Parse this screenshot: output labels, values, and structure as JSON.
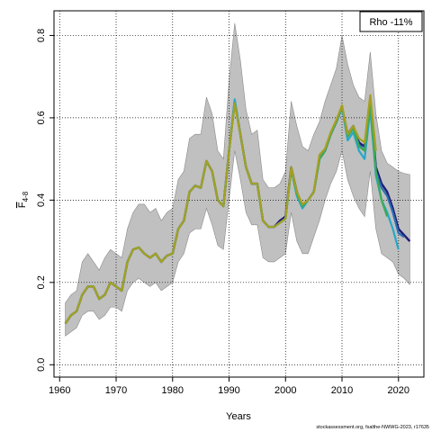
{
  "chart_data": {
    "type": "line",
    "xlabel": "Years",
    "ylabel_main": "F",
    "ylabel_sub": "4-8",
    "xlim": [
      1959,
      2024.5
    ],
    "ylim": [
      -0.03,
      0.86
    ],
    "x_ticks": [
      1960,
      1970,
      1980,
      1990,
      2000,
      2010,
      2020
    ],
    "y_ticks": [
      "0.0",
      "0.2",
      "0.4",
      "0.6",
      "0.8"
    ],
    "y_tick_values": [
      0.0,
      0.2,
      0.4,
      0.6,
      0.8
    ],
    "grid": true,
    "legend_position": "top-right",
    "legend_text": "Rho -11%",
    "band": {
      "x": [
        1961,
        1962,
        1963,
        1964,
        1965,
        1966,
        1967,
        1968,
        1969,
        1970,
        1971,
        1972,
        1973,
        1974,
        1975,
        1976,
        1977,
        1978,
        1979,
        1980,
        1981,
        1982,
        1983,
        1984,
        1985,
        1986,
        1987,
        1988,
        1989,
        1990,
        1991,
        1992,
        1993,
        1994,
        1995,
        1996,
        1997,
        1998,
        1999,
        2000,
        2001,
        2002,
        2003,
        2004,
        2005,
        2006,
        2007,
        2008,
        2009,
        2010,
        2011,
        2012,
        2013,
        2014,
        2015,
        2016,
        2017,
        2018,
        2019,
        2020,
        2021,
        2022
      ],
      "upper": [
        0.15,
        0.17,
        0.18,
        0.25,
        0.27,
        0.25,
        0.23,
        0.26,
        0.28,
        0.27,
        0.26,
        0.33,
        0.37,
        0.39,
        0.39,
        0.37,
        0.38,
        0.35,
        0.37,
        0.38,
        0.45,
        0.47,
        0.55,
        0.56,
        0.56,
        0.65,
        0.61,
        0.52,
        0.5,
        0.69,
        0.83,
        0.74,
        0.62,
        0.56,
        0.57,
        0.45,
        0.43,
        0.43,
        0.44,
        0.47,
        0.64,
        0.58,
        0.53,
        0.52,
        0.56,
        0.59,
        0.64,
        0.68,
        0.72,
        0.8,
        0.73,
        0.68,
        0.65,
        0.64,
        0.76,
        0.61,
        0.52,
        0.49,
        0.48,
        0.47,
        0.465,
        0.462
      ],
      "lower": [
        0.07,
        0.08,
        0.09,
        0.12,
        0.13,
        0.13,
        0.11,
        0.12,
        0.14,
        0.14,
        0.13,
        0.18,
        0.2,
        0.21,
        0.2,
        0.19,
        0.2,
        0.18,
        0.19,
        0.2,
        0.25,
        0.27,
        0.32,
        0.33,
        0.33,
        0.38,
        0.34,
        0.29,
        0.28,
        0.4,
        0.52,
        0.45,
        0.37,
        0.34,
        0.34,
        0.26,
        0.25,
        0.25,
        0.26,
        0.27,
        0.37,
        0.3,
        0.27,
        0.27,
        0.31,
        0.35,
        0.4,
        0.44,
        0.47,
        0.52,
        0.45,
        0.41,
        0.38,
        0.36,
        0.47,
        0.33,
        0.27,
        0.26,
        0.25,
        0.22,
        0.21,
        0.195
      ]
    },
    "series": [
      {
        "color": "#1e1b78",
        "x": [
          1961,
          1962,
          1963,
          1964,
          1965,
          1966,
          1967,
          1968,
          1969,
          1970,
          1971,
          1972,
          1973,
          1974,
          1975,
          1976,
          1977,
          1978,
          1979,
          1980,
          1981,
          1982,
          1983,
          1984,
          1985,
          1986,
          1987,
          1988,
          1989,
          1990,
          1991,
          1992,
          1993,
          1994,
          1995,
          1996,
          1997,
          1998,
          1999,
          2000,
          2001,
          2002,
          2003,
          2004,
          2005,
          2006,
          2007,
          2008,
          2009,
          2010,
          2011,
          2012,
          2013,
          2014,
          2015,
          2016,
          2017,
          2018,
          2019,
          2020,
          2021,
          2022
        ],
        "values": [
          0.1,
          0.12,
          0.13,
          0.17,
          0.19,
          0.19,
          0.16,
          0.17,
          0.2,
          0.19,
          0.18,
          0.25,
          0.28,
          0.285,
          0.27,
          0.26,
          0.27,
          0.25,
          0.265,
          0.27,
          0.33,
          0.35,
          0.42,
          0.435,
          0.43,
          0.495,
          0.47,
          0.4,
          0.385,
          0.52,
          0.64,
          0.56,
          0.48,
          0.44,
          0.44,
          0.35,
          0.335,
          0.335,
          0.35,
          0.36,
          0.48,
          0.42,
          0.385,
          0.4,
          0.42,
          0.5,
          0.52,
          0.56,
          0.59,
          0.625,
          0.56,
          0.58,
          0.54,
          0.53,
          0.64,
          0.48,
          0.44,
          0.42,
          0.38,
          0.33,
          0.315,
          0.3
        ]
      },
      {
        "color": "#2b6fb0",
        "x": [
          1961,
          1962,
          1963,
          1964,
          1965,
          1966,
          1967,
          1968,
          1969,
          1970,
          1971,
          1972,
          1973,
          1974,
          1975,
          1976,
          1977,
          1978,
          1979,
          1980,
          1981,
          1982,
          1983,
          1984,
          1985,
          1986,
          1987,
          1988,
          1989,
          1990,
          1991,
          1992,
          1993,
          1994,
          1995,
          1996,
          1997,
          1998,
          1999,
          2000,
          2001,
          2002,
          2003,
          2004,
          2005,
          2006,
          2007,
          2008,
          2009,
          2010,
          2011,
          2012,
          2013,
          2014,
          2015,
          2016,
          2017,
          2018,
          2019,
          2020,
          2021
        ],
        "values": [
          0.1,
          0.12,
          0.13,
          0.17,
          0.19,
          0.19,
          0.16,
          0.17,
          0.2,
          0.19,
          0.18,
          0.25,
          0.28,
          0.285,
          0.27,
          0.26,
          0.27,
          0.25,
          0.265,
          0.27,
          0.33,
          0.35,
          0.42,
          0.435,
          0.43,
          0.495,
          0.47,
          0.4,
          0.385,
          0.52,
          0.64,
          0.56,
          0.48,
          0.44,
          0.44,
          0.35,
          0.335,
          0.335,
          0.345,
          0.355,
          0.475,
          0.415,
          0.385,
          0.4,
          0.42,
          0.5,
          0.52,
          0.56,
          0.59,
          0.625,
          0.555,
          0.575,
          0.535,
          0.52,
          0.63,
          0.47,
          0.43,
          0.41,
          0.37,
          0.32,
          0.31
        ]
      },
      {
        "color": "#25a8c8",
        "x": [
          1961,
          1962,
          1963,
          1964,
          1965,
          1966,
          1967,
          1968,
          1969,
          1970,
          1971,
          1972,
          1973,
          1974,
          1975,
          1976,
          1977,
          1978,
          1979,
          1980,
          1981,
          1982,
          1983,
          1984,
          1985,
          1986,
          1987,
          1988,
          1989,
          1990,
          1991,
          1992,
          1993,
          1994,
          1995,
          1996,
          1997,
          1998,
          1999,
          2000,
          2001,
          2002,
          2003,
          2004,
          2005,
          2006,
          2007,
          2008,
          2009,
          2010,
          2011,
          2012,
          2013,
          2014,
          2015,
          2016,
          2017,
          2018,
          2019,
          2020
        ],
        "values": [
          0.1,
          0.12,
          0.13,
          0.17,
          0.19,
          0.19,
          0.16,
          0.17,
          0.2,
          0.19,
          0.18,
          0.25,
          0.28,
          0.285,
          0.27,
          0.26,
          0.27,
          0.25,
          0.265,
          0.27,
          0.33,
          0.35,
          0.42,
          0.435,
          0.43,
          0.495,
          0.47,
          0.4,
          0.385,
          0.52,
          0.645,
          0.56,
          0.48,
          0.44,
          0.44,
          0.35,
          0.335,
          0.335,
          0.345,
          0.355,
          0.475,
          0.41,
          0.38,
          0.4,
          0.42,
          0.5,
          0.52,
          0.56,
          0.59,
          0.625,
          0.545,
          0.565,
          0.52,
          0.5,
          0.62,
          0.46,
          0.4,
          0.37,
          0.33,
          0.28
        ]
      },
      {
        "color": "#3daa55",
        "x": [
          1961,
          1962,
          1963,
          1964,
          1965,
          1966,
          1967,
          1968,
          1969,
          1970,
          1971,
          1972,
          1973,
          1974,
          1975,
          1976,
          1977,
          1978,
          1979,
          1980,
          1981,
          1982,
          1983,
          1984,
          1985,
          1986,
          1987,
          1988,
          1989,
          1990,
          1991,
          1992,
          1993,
          1994,
          1995,
          1996,
          1997,
          1998,
          1999,
          2000,
          2001,
          2002,
          2003,
          2004,
          2005,
          2006,
          2007,
          2008,
          2009,
          2010,
          2011,
          2012,
          2013,
          2014,
          2015,
          2016,
          2017,
          2018
        ],
        "values": [
          0.1,
          0.12,
          0.13,
          0.17,
          0.19,
          0.19,
          0.16,
          0.17,
          0.2,
          0.19,
          0.18,
          0.25,
          0.28,
          0.285,
          0.27,
          0.26,
          0.27,
          0.25,
          0.265,
          0.27,
          0.33,
          0.35,
          0.42,
          0.435,
          0.43,
          0.495,
          0.47,
          0.4,
          0.385,
          0.52,
          0.635,
          0.56,
          0.48,
          0.44,
          0.44,
          0.35,
          0.335,
          0.335,
          0.345,
          0.355,
          0.475,
          0.415,
          0.385,
          0.4,
          0.42,
          0.5,
          0.52,
          0.56,
          0.59,
          0.63,
          0.555,
          0.575,
          0.53,
          0.52,
          0.635,
          0.47,
          0.4,
          0.36
        ]
      },
      {
        "color": "#a6a020",
        "x": [
          1961,
          1962,
          1963,
          1964,
          1965,
          1966,
          1967,
          1968,
          1969,
          1970,
          1971,
          1972,
          1973,
          1974,
          1975,
          1976,
          1977,
          1978,
          1979,
          1980,
          1981,
          1982,
          1983,
          1984,
          1985,
          1986,
          1987,
          1988,
          1989,
          1990,
          1991,
          1992,
          1993,
          1994,
          1995,
          1996,
          1997,
          1998,
          1999,
          2000,
          2001,
          2002,
          2003,
          2004,
          2005,
          2006,
          2007,
          2008,
          2009,
          2010,
          2011,
          2012,
          2013,
          2014,
          2015,
          2016
        ],
        "values": [
          0.1,
          0.12,
          0.13,
          0.17,
          0.19,
          0.19,
          0.16,
          0.17,
          0.2,
          0.19,
          0.18,
          0.25,
          0.28,
          0.285,
          0.27,
          0.26,
          0.27,
          0.25,
          0.265,
          0.27,
          0.33,
          0.35,
          0.42,
          0.435,
          0.43,
          0.495,
          0.47,
          0.4,
          0.385,
          0.52,
          0.635,
          0.56,
          0.48,
          0.44,
          0.44,
          0.35,
          0.335,
          0.335,
          0.345,
          0.355,
          0.48,
          0.42,
          0.39,
          0.4,
          0.42,
          0.51,
          0.525,
          0.565,
          0.595,
          0.63,
          0.56,
          0.58,
          0.55,
          0.54,
          0.655,
          0.52
        ]
      }
    ]
  },
  "footer": {
    "source": "stockassessment.org, fsalthe-NWWG-2023, r17635"
  }
}
